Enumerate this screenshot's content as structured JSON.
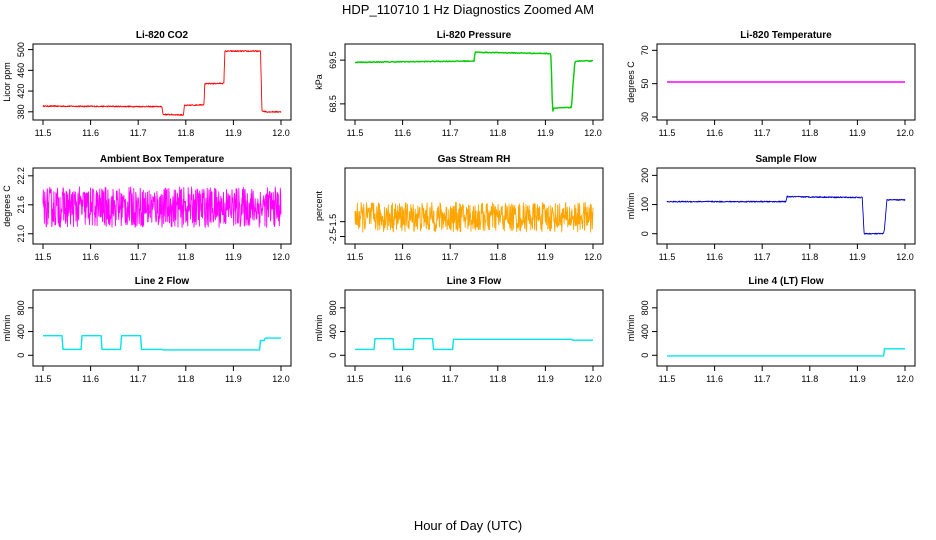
{
  "figure": {
    "title": "HDP_110710  1 Hz Diagnostics Zoomed AM",
    "xlabel": "Hour of Day (UTC)"
  },
  "chart_data": [
    {
      "type": "line",
      "title": "Li-820 CO2",
      "ylabel": "Licor ppm",
      "color": "#ff0000",
      "xlim": [
        11.5,
        12.0
      ],
      "xticks": [
        "11.5",
        "11.6",
        "11.7",
        "11.8",
        "11.9",
        "12.0"
      ],
      "ylim": [
        370,
        505
      ],
      "yticks": [
        "380",
        "420",
        "460",
        "500"
      ],
      "series": [
        {
          "x": [
            11.5,
            11.75,
            11.752,
            11.795,
            11.797,
            11.838,
            11.84,
            11.88,
            11.882,
            11.957,
            11.96,
            11.97,
            12.0
          ],
          "y": [
            391,
            390,
            375,
            374,
            392,
            394,
            434,
            435,
            497,
            497,
            382,
            380,
            380
          ],
          "noise": 1.2
        }
      ]
    },
    {
      "type": "line",
      "title": "Li-820 Pressure",
      "ylabel": "kPa",
      "color": "#00cc00",
      "xlim": [
        11.5,
        12.0
      ],
      "xticks": [
        "11.5",
        "11.6",
        "11.7",
        "11.8",
        "11.9",
        "12.0"
      ],
      "ylim": [
        68.2,
        69.8
      ],
      "yticks": [
        "68.5",
        "69.5"
      ],
      "series": [
        {
          "x": [
            11.5,
            11.75,
            11.752,
            11.91,
            11.912,
            11.915,
            11.917,
            11.955,
            11.957,
            11.962,
            11.964,
            12.0
          ],
          "y": [
            69.45,
            69.48,
            69.68,
            69.65,
            69.6,
            68.3,
            68.4,
            68.42,
            68.8,
            69.46,
            69.48,
            69.48
          ],
          "noise": 0.01
        }
      ]
    },
    {
      "type": "line",
      "title": "Li-820 Temperature",
      "ylabel": "degrees C",
      "color": "#ff00ff",
      "xlim": [
        11.5,
        12.0
      ],
      "xticks": [
        "11.5",
        "11.6",
        "11.7",
        "11.8",
        "11.9",
        "12.0"
      ],
      "ylim": [
        30,
        72
      ],
      "yticks": [
        "30",
        "50",
        "70"
      ],
      "series": [
        {
          "x": [
            11.5,
            12.0
          ],
          "y": [
            51,
            51
          ],
          "noise": 0
        }
      ]
    },
    {
      "type": "line",
      "title": "Ambient Box Temperature",
      "ylabel": "degrees C",
      "color": "#ff00ff",
      "xlim": [
        11.5,
        12.0
      ],
      "xticks": [
        "11.5",
        "11.6",
        "11.7",
        "11.8",
        "11.9",
        "12.0"
      ],
      "ylim": [
        20.85,
        22.3
      ],
      "yticks": [
        "21.0",
        "21.6",
        "22.2"
      ],
      "series": [
        {
          "x": [
            11.5,
            12.0
          ],
          "y": [
            21.55,
            21.55
          ],
          "noise": 0.42
        }
      ]
    },
    {
      "type": "line",
      "title": "Gas Stream RH",
      "ylabel": "percent",
      "color": "#ffa500",
      "xlim": [
        11.5,
        12.0
      ],
      "xticks": [
        "11.5",
        "11.6",
        "11.7",
        "11.8",
        "11.9",
        "12.0"
      ],
      "ylim": [
        -2.8,
        1.9
      ],
      "yticks": [
        "-2.5",
        "-1.5"
      ],
      "series": [
        {
          "x": [
            11.5,
            12.0
          ],
          "y": [
            -1.2,
            -1.2
          ],
          "noise": 1.0
        }
      ]
    },
    {
      "type": "line",
      "title": "Sample Flow",
      "ylabel": "ml/min",
      "color": "#0000cc",
      "xlim": [
        11.5,
        12.0
      ],
      "xticks": [
        "11.5",
        "11.6",
        "11.7",
        "11.8",
        "11.9",
        "12.0"
      ],
      "ylim": [
        -25,
        215
      ],
      "yticks": [
        "0",
        "100",
        "200"
      ],
      "series": [
        {
          "x": [
            11.5,
            11.75,
            11.752,
            11.91,
            11.912,
            11.914,
            11.955,
            11.957,
            11.962,
            12.0
          ],
          "y": [
            110,
            110,
            127,
            124,
            70,
            0,
            0,
            20,
            116,
            116
          ],
          "noise": 2
        }
      ]
    },
    {
      "type": "line",
      "title": "Line 2 Flow",
      "ylabel": "ml/min",
      "color": "#00e5ee",
      "xlim": [
        11.5,
        12.0
      ],
      "xticks": [
        "11.5",
        "11.6",
        "11.7",
        "11.8",
        "11.9",
        "12.0"
      ],
      "ylim": [
        -130,
        1050
      ],
      "yticks": [
        "0",
        "400",
        "800"
      ],
      "series": [
        {
          "x": [
            11.5,
            11.54,
            11.542,
            11.58,
            11.582,
            11.622,
            11.624,
            11.663,
            11.665,
            11.705,
            11.707,
            11.75,
            11.752,
            11.955,
            11.957,
            11.965,
            11.967,
            12.0
          ],
          "y": [
            330,
            330,
            100,
            100,
            330,
            330,
            100,
            100,
            330,
            330,
            100,
            100,
            90,
            90,
            250,
            250,
            290,
            290
          ],
          "noise": 0
        }
      ]
    },
    {
      "type": "line",
      "title": "Line 3 Flow",
      "ylabel": "ml/min",
      "color": "#00e5ee",
      "xlim": [
        11.5,
        12.0
      ],
      "xticks": [
        "11.5",
        "11.6",
        "11.7",
        "11.8",
        "11.9",
        "12.0"
      ],
      "ylim": [
        -130,
        1050
      ],
      "yticks": [
        "0",
        "400",
        "800"
      ],
      "series": [
        {
          "x": [
            11.5,
            11.54,
            11.542,
            11.58,
            11.582,
            11.622,
            11.624,
            11.663,
            11.665,
            11.705,
            11.707,
            11.955,
            11.957,
            12.0
          ],
          "y": [
            100,
            100,
            280,
            280,
            100,
            100,
            280,
            280,
            100,
            100,
            270,
            270,
            255,
            255
          ],
          "noise": 0
        }
      ]
    },
    {
      "type": "line",
      "title": "Line 4 (LT) Flow",
      "ylabel": "ml/min",
      "color": "#00e5ee",
      "xlim": [
        11.5,
        12.0
      ],
      "xticks": [
        "11.5",
        "11.6",
        "11.7",
        "11.8",
        "11.9",
        "12.0"
      ],
      "ylim": [
        -130,
        1050
      ],
      "yticks": [
        "0",
        "400",
        "800"
      ],
      "series": [
        {
          "x": [
            11.5,
            11.955,
            11.957,
            12.0
          ],
          "y": [
            -10,
            -10,
            110,
            110
          ],
          "noise": 0
        }
      ]
    }
  ]
}
